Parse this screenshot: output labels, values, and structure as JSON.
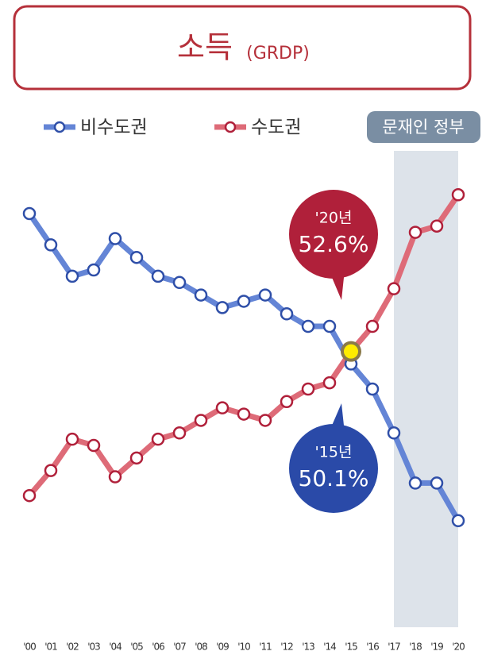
{
  "chart_data": {
    "type": "line",
    "title": "소득",
    "subtitle": "(GRDP)",
    "categories": [
      "'00",
      "'01",
      "'02",
      "'03",
      "'04",
      "'05",
      "'06",
      "'07",
      "'08",
      "'09",
      "'10",
      "'11",
      "'12",
      "'13",
      "'14",
      "'15",
      "'16",
      "'17",
      "'18",
      "'19",
      "'20"
    ],
    "series": [
      {
        "name": "비수도권",
        "color": "#6485d6",
        "marker_color": "#2f4fa8",
        "values": [
          52.3,
          51.8,
          51.3,
          51.4,
          51.9,
          51.6,
          51.3,
          51.2,
          51.0,
          50.8,
          50.9,
          51.0,
          50.7,
          50.5,
          50.5,
          49.9,
          49.5,
          48.8,
          48.0,
          48.0,
          47.4
        ]
      },
      {
        "name": "수도권",
        "color": "#de6b78",
        "marker_color": "#b0203a",
        "values": [
          47.8,
          48.2,
          48.7,
          48.6,
          48.1,
          48.4,
          48.7,
          48.8,
          49.0,
          49.2,
          49.1,
          49.0,
          49.3,
          49.5,
          49.6,
          50.1,
          50.5,
          51.1,
          52.0,
          52.1,
          52.6
        ]
      }
    ],
    "ylim": [
      45.7,
      53.3
    ],
    "shaded_range": {
      "label": "문재인 정부",
      "x_range": [
        "'17",
        "'20"
      ]
    },
    "annotations": [
      {
        "label": "'20년",
        "value_label": "52.6%",
        "color": "#b0203a"
      },
      {
        "label": "'15년",
        "value_label": "50.1%",
        "color": "#2a4aa8"
      }
    ]
  }
}
